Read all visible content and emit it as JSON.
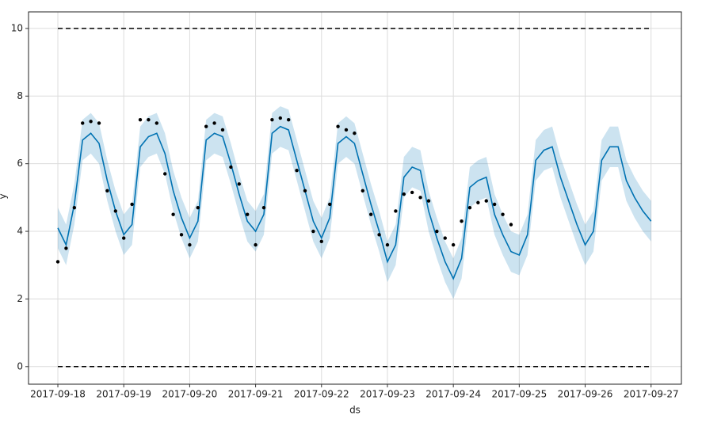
{
  "chart_data": {
    "type": "line",
    "x_label": "ds",
    "y_label": "y",
    "xlim": [
      -0.445,
      9.46
    ],
    "ylim": [
      -0.52,
      10.49
    ],
    "xticks": [
      {
        "value": 0,
        "label": "2017-09-18"
      },
      {
        "value": 1,
        "label": "2017-09-19"
      },
      {
        "value": 2,
        "label": "2017-09-20"
      },
      {
        "value": 3,
        "label": "2017-09-21"
      },
      {
        "value": 4,
        "label": "2017-09-22"
      },
      {
        "value": 5,
        "label": "2017-09-23"
      },
      {
        "value": 6,
        "label": "2017-09-24"
      },
      {
        "value": 7,
        "label": "2017-09-25"
      },
      {
        "value": 8,
        "label": "2017-09-26"
      },
      {
        "value": 9,
        "label": "2017-09-27"
      }
    ],
    "yticks": [
      0,
      2,
      4,
      6,
      8,
      10
    ],
    "grid": true,
    "cap": 10,
    "floor": 0,
    "cap_color": "#000000",
    "forecast": {
      "color": "#0072B2",
      "band_color": "#0072B2",
      "x": [
        0,
        0.125,
        0.25,
        0.375,
        0.5,
        0.625,
        0.75,
        0.875,
        1,
        1.125,
        1.25,
        1.375,
        1.5,
        1.625,
        1.75,
        1.875,
        2,
        2.125,
        2.25,
        2.375,
        2.5,
        2.625,
        2.75,
        2.875,
        3,
        3.125,
        3.25,
        3.375,
        3.5,
        3.625,
        3.75,
        3.875,
        4,
        4.125,
        4.25,
        4.375,
        4.5,
        4.625,
        4.75,
        4.875,
        5,
        5.125,
        5.25,
        5.375,
        5.5,
        5.625,
        5.75,
        5.875,
        6,
        6.125,
        6.25,
        6.375,
        6.5,
        6.625,
        6.75,
        6.875,
        7,
        7.125,
        7.25,
        7.375,
        7.5,
        7.625,
        7.75,
        7.875,
        8,
        8.125,
        8.25,
        8.375,
        8.5,
        8.625,
        8.75,
        8.875,
        9
      ],
      "values": [
        4.1,
        3.6,
        4.8,
        6.7,
        6.9,
        6.6,
        5.5,
        4.6,
        3.9,
        4.2,
        6.5,
        6.8,
        6.9,
        6.3,
        5.2,
        4.4,
        3.8,
        4.3,
        6.7,
        6.9,
        6.8,
        6.0,
        5.1,
        4.3,
        4.0,
        4.5,
        6.9,
        7.1,
        7.0,
        6.1,
        5.2,
        4.3,
        3.8,
        4.4,
        6.6,
        6.8,
        6.6,
        5.7,
        4.8,
        4.0,
        3.1,
        3.6,
        5.6,
        5.9,
        5.8,
        4.6,
        3.8,
        3.1,
        2.6,
        3.2,
        5.3,
        5.5,
        5.6,
        4.5,
        3.9,
        3.4,
        3.3,
        3.9,
        6.1,
        6.4,
        6.5,
        5.6,
        4.9,
        4.2,
        3.6,
        4.0,
        6.1,
        6.5,
        6.5,
        5.5,
        5.0,
        4.6,
        4.3
      ],
      "lower": [
        3.5,
        3.0,
        4.2,
        6.1,
        6.3,
        6.0,
        4.9,
        4.0,
        3.3,
        3.6,
        5.9,
        6.2,
        6.3,
        5.7,
        4.6,
        3.8,
        3.2,
        3.7,
        6.1,
        6.3,
        6.2,
        5.4,
        4.5,
        3.7,
        3.4,
        3.9,
        6.3,
        6.5,
        6.4,
        5.5,
        4.6,
        3.7,
        3.2,
        3.8,
        6.0,
        6.2,
        6.0,
        5.1,
        4.2,
        3.4,
        2.5,
        3.0,
        5.0,
        5.3,
        5.2,
        4.0,
        3.2,
        2.5,
        2.0,
        2.6,
        4.7,
        4.9,
        5.0,
        3.9,
        3.3,
        2.8,
        2.7,
        3.3,
        5.5,
        5.8,
        5.9,
        5.0,
        4.3,
        3.6,
        3.0,
        3.4,
        5.5,
        5.9,
        5.9,
        4.9,
        4.4,
        4.0,
        3.7
      ],
      "upper": [
        4.7,
        4.2,
        5.4,
        7.3,
        7.5,
        7.2,
        6.1,
        5.2,
        4.5,
        4.8,
        7.1,
        7.4,
        7.5,
        6.9,
        5.8,
        5.0,
        4.4,
        4.9,
        7.3,
        7.5,
        7.4,
        6.6,
        5.7,
        4.9,
        4.6,
        5.1,
        7.5,
        7.7,
        7.6,
        6.7,
        5.8,
        4.9,
        4.4,
        5.0,
        7.2,
        7.4,
        7.2,
        6.3,
        5.4,
        4.6,
        3.7,
        4.2,
        6.2,
        6.5,
        6.4,
        5.2,
        4.4,
        3.7,
        3.2,
        3.8,
        5.9,
        6.1,
        6.2,
        5.1,
        4.5,
        4.0,
        3.9,
        4.5,
        6.7,
        7.0,
        7.1,
        6.2,
        5.5,
        4.8,
        4.2,
        4.6,
        6.7,
        7.1,
        7.1,
        6.1,
        5.6,
        5.2,
        4.9
      ]
    },
    "observed": {
      "color": "#000000",
      "x": [
        0,
        0.125,
        0.25,
        0.375,
        0.5,
        0.625,
        0.75,
        0.875,
        1,
        1.125,
        1.25,
        1.375,
        1.5,
        1.625,
        1.75,
        1.875,
        2,
        2.125,
        2.25,
        2.375,
        2.5,
        2.625,
        2.75,
        2.875,
        3,
        3.125,
        3.25,
        3.375,
        3.5,
        3.625,
        3.75,
        3.875,
        4,
        4.125,
        4.25,
        4.375,
        4.5,
        4.625,
        4.75,
        4.875,
        5,
        5.125,
        5.25,
        5.375,
        5.5,
        5.625,
        5.75,
        5.875,
        6,
        6.125,
        6.25,
        6.375,
        6.5,
        6.625,
        6.75,
        6.875
      ],
      "values": [
        3.1,
        3.5,
        4.7,
        7.2,
        7.25,
        7.2,
        5.2,
        4.6,
        3.8,
        4.8,
        7.3,
        7.3,
        7.2,
        5.7,
        4.5,
        3.9,
        3.6,
        4.7,
        7.1,
        7.2,
        7.0,
        5.9,
        5.4,
        4.5,
        3.6,
        4.7,
        7.3,
        7.35,
        7.3,
        5.8,
        5.2,
        4.0,
        3.7,
        4.8,
        7.1,
        7.0,
        6.9,
        5.2,
        4.5,
        3.9,
        3.6,
        4.6,
        5.1,
        5.15,
        5.0,
        4.9,
        4.0,
        3.8,
        3.6,
        4.3,
        4.7,
        4.85,
        4.9,
        4.8,
        4.5,
        4.2
      ]
    }
  }
}
